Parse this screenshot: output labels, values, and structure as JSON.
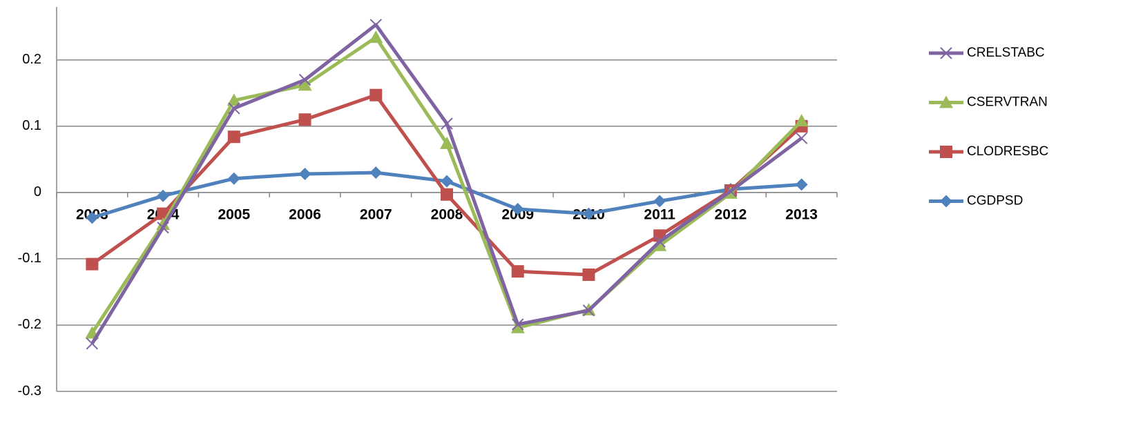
{
  "chart_data": {
    "type": "line",
    "categories": [
      "2003",
      "2004",
      "2005",
      "2006",
      "2007",
      "2008",
      "2009",
      "2010",
      "2011",
      "2012",
      "2013"
    ],
    "series": [
      {
        "name": "CRELSTABC",
        "color": "#8064a2",
        "marker": "x",
        "values": [
          -0.228,
          -0.053,
          0.127,
          0.17,
          0.253,
          0.104,
          -0.199,
          -0.178,
          -0.074,
          0.002,
          0.082
        ]
      },
      {
        "name": "CSERVTRAN",
        "color": "#9bbb59",
        "marker": "triangle",
        "values": [
          -0.212,
          -0.048,
          0.139,
          0.162,
          0.234,
          0.074,
          -0.204,
          -0.177,
          -0.08,
          -0.001,
          0.108
        ]
      },
      {
        "name": "CLODRESBC",
        "color": "#c0504d",
        "marker": "square",
        "values": [
          -0.108,
          -0.032,
          0.084,
          0.11,
          0.147,
          -0.003,
          -0.119,
          -0.124,
          -0.065,
          0.003,
          0.1
        ]
      },
      {
        "name": "CGDPSD",
        "color": "#4f81bd",
        "marker": "diamond",
        "values": [
          -0.038,
          -0.005,
          0.021,
          0.028,
          0.03,
          0.017,
          -0.025,
          -0.032,
          -0.013,
          0.005,
          0.012
        ]
      }
    ],
    "ylim": [
      -0.3,
      0.28
    ],
    "yticks": [
      -0.3,
      -0.2,
      -0.1,
      0,
      0.1,
      0.2
    ],
    "grid": true,
    "legend": "right"
  }
}
